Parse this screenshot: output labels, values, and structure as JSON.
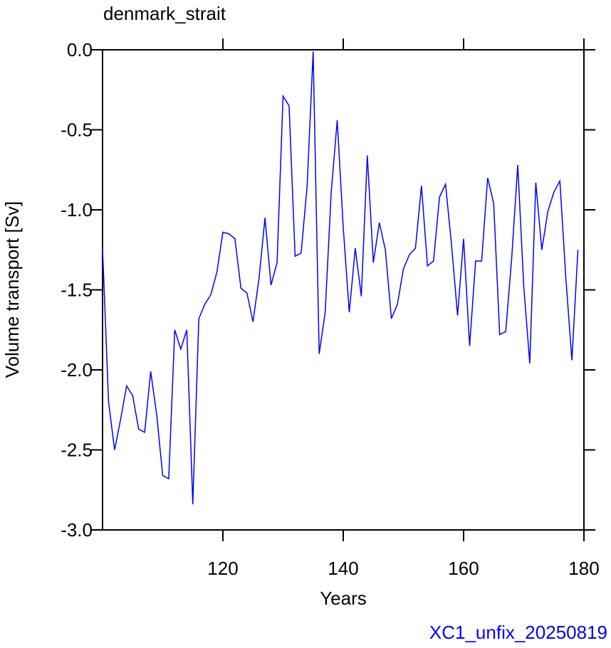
{
  "chart_data": {
    "type": "line",
    "title": "denmark_strait",
    "xlabel": "Years",
    "ylabel": "Volume transport [Sv]",
    "annotation": "XC1_unfix_20250819",
    "annotation_color": "#0000ff",
    "x": [
      100,
      101,
      102,
      103,
      104,
      105,
      106,
      107,
      108,
      109,
      110,
      111,
      112,
      113,
      114,
      115,
      116,
      117,
      118,
      119,
      120,
      121,
      122,
      123,
      124,
      125,
      126,
      127,
      128,
      129,
      130,
      131,
      132,
      133,
      134,
      135,
      136,
      137,
      138,
      139,
      140,
      141,
      142,
      143,
      144,
      145,
      146,
      147,
      148,
      149,
      150,
      151,
      152,
      153,
      154,
      155,
      156,
      157,
      158,
      159,
      160,
      161,
      162,
      163,
      164,
      165,
      166,
      167,
      168,
      169,
      170,
      171,
      172,
      173,
      174,
      175,
      176,
      177,
      178,
      179
    ],
    "series": [
      {
        "color": "#0000ff",
        "values": [
          -1.24,
          -2.2,
          -2.5,
          -2.31,
          -2.1,
          -2.16,
          -2.37,
          -2.39,
          -2.01,
          -2.28,
          -2.66,
          -2.68,
          -1.75,
          -1.87,
          -1.75,
          -2.84,
          -1.68,
          -1.59,
          -1.53,
          -1.39,
          -1.14,
          -1.15,
          -1.18,
          -1.49,
          -1.52,
          -1.7,
          -1.43,
          -1.05,
          -1.47,
          -1.33,
          -0.29,
          -0.35,
          -1.29,
          -1.27,
          -0.85,
          -0.01,
          -1.9,
          -1.64,
          -0.89,
          -0.44,
          -1.11,
          -1.64,
          -1.24,
          -1.54,
          -0.66,
          -1.33,
          -1.08,
          -1.25,
          -1.68,
          -1.59,
          -1.37,
          -1.28,
          -1.24,
          -0.85,
          -1.35,
          -1.32,
          -0.92,
          -0.84,
          -1.22,
          -1.66,
          -1.18,
          -1.85,
          -1.32,
          -1.32,
          -0.8,
          -0.96,
          -1.78,
          -1.76,
          -1.3,
          -0.72,
          -1.48,
          -1.96,
          -0.83,
          -1.25,
          -1.01,
          -0.89,
          -0.82,
          -1.43,
          -1.94,
          -1.25
        ]
      }
    ],
    "xlim": [
      100,
      180
    ],
    "xticks": [
      120,
      140,
      160,
      180
    ],
    "ylim": [
      -3,
      0
    ],
    "yticks": [
      {
        "value": -3,
        "label": "-3.0"
      },
      -2.5,
      {
        "value": -2,
        "label": "-2.0"
      },
      -1.5,
      {
        "value": -1,
        "label": "-1.0"
      },
      -0.5,
      {
        "value": 0,
        "label": "0.0"
      }
    ]
  }
}
